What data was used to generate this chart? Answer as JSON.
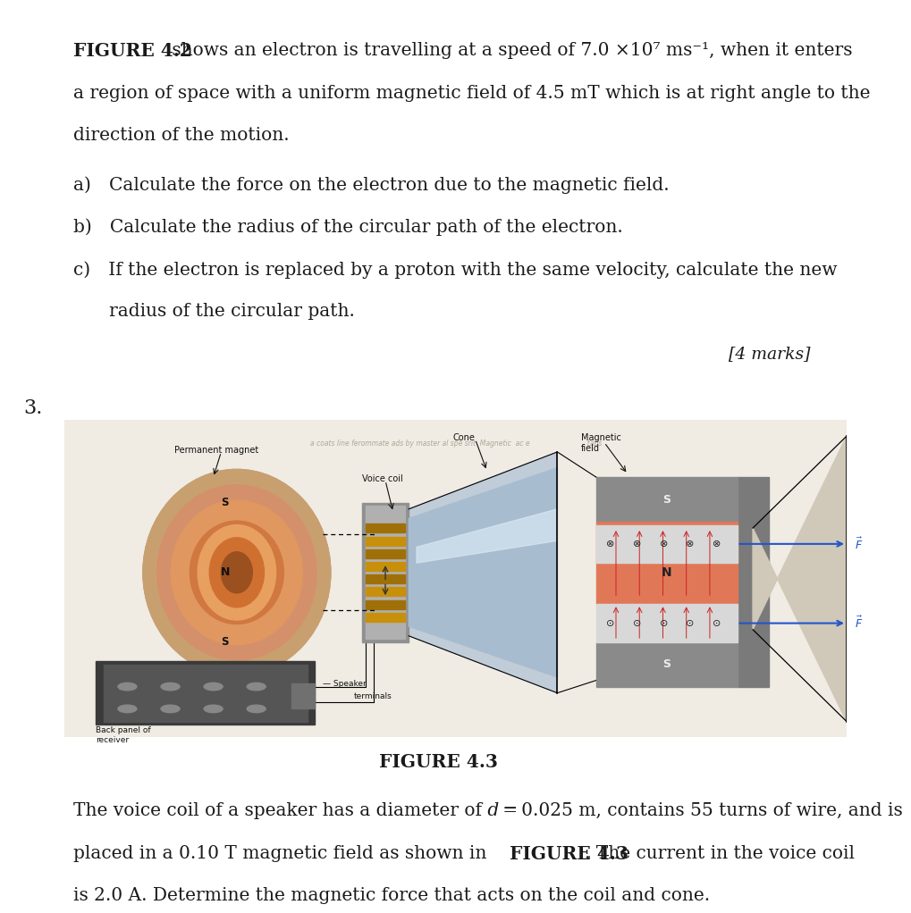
{
  "bg_color": "#ffffff",
  "figure_label": "FIGURE 4.2",
  "intro_line1_rest": " shows an electron is travelling at a speed of 7.0 ×10⁷ ms⁻¹, when it enters",
  "intro_line2": "a region of space with a uniform magnetic field of 4.5 mT which is at right angle to the",
  "intro_line3": "direction of the motion.",
  "q_a": "a) Calculate the force on the electron due to the magnetic field.",
  "q_b": "b) Calculate the radius of the circular path of the electron.",
  "q_c1": "c) If the electron is replaced by a proton with the same velocity, calculate the new",
  "q_c2": "   radius of the circular path.",
  "marks": "[4 marks]",
  "question_number": "3.",
  "figure_caption": "FIGURE 4.3",
  "bt1": "The voice coil of a speaker has a diameter of 𝑑 = 0.025 m, contains 55 turns of wire, and is",
  "bt2a": "placed in a 0.10 T magnetic field as shown in ",
  "bt2b": "FIGURE 4.3",
  "bt2c": ". The current in the voice coil",
  "bt3": "is 2.0 A. Determine the magnetic force that acts on the coil and cone.",
  "fs": 14.5,
  "fs_marks": 13.5,
  "fs_qnum": 16,
  "lm": 0.075,
  "tc": "#1a1a1a",
  "label_top_blurry": "a coats line ferommate ads by master al spe srit  Magnetic  ac e                           tabs",
  "label_blurry_color": "#b0a898",
  "img_bg": "#f0ebe3",
  "magnet_outer": "#c9a478",
  "magnet_mid": "#d4906a",
  "magnet_inner": "#b8642a",
  "magnet_core": "#8b4513",
  "cone_color": "#b8c8d8",
  "cone_light": "#dde8f0",
  "field_orange": "#e07858",
  "field_gray_top": "#8a8a8a",
  "field_gray_bot": "#8a8a8a",
  "arrow_color": "#2255cc",
  "panel_dark": "#3a3a3a",
  "panel_mid": "#555555"
}
